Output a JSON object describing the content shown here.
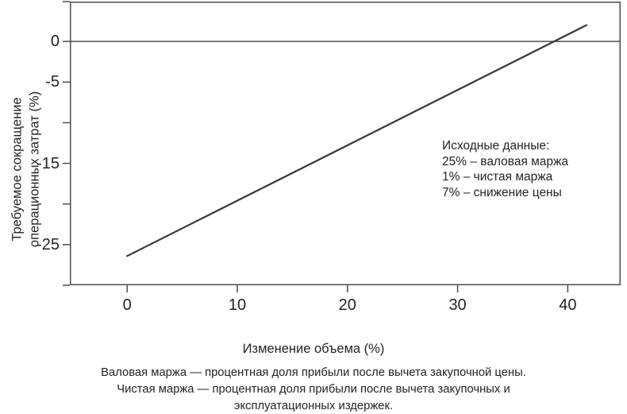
{
  "figure": {
    "background_color": "#ffffff",
    "text_color": "#242424",
    "axis_color": "#4d4d4d",
    "line_color": "#383838"
  },
  "chart_data": {
    "type": "line",
    "title": "",
    "xlabel": "Изменение объема (%)",
    "ylabel_line1": "Требуемое сокращение",
    "ylabel_line2": "операционных затрат (%)",
    "xlim": [
      -5.2,
      44.8
    ],
    "ylim": [
      -30,
      4.9
    ],
    "grid": false,
    "zero_line": 0,
    "series": [
      {
        "name": "Требуемое сокращение операционных затрат",
        "points": [
          [
            0,
            -26.4
          ],
          [
            41.7,
            2.0
          ]
        ]
      }
    ],
    "breakeven_x": 38.5,
    "x_ticks": [
      {
        "v": 0,
        "label": "0"
      },
      {
        "v": 10,
        "label": "10"
      },
      {
        "v": 20,
        "label": "20"
      },
      {
        "v": 30,
        "label": "30"
      },
      {
        "v": 40,
        "label": "40"
      }
    ],
    "y_ticks": [
      {
        "v": 4.9,
        "label": ""
      },
      {
        "v": 0,
        "label": "0"
      },
      {
        "v": -5,
        "label": "-5"
      },
      {
        "v": -10,
        "label": ""
      },
      {
        "v": -15,
        "label": "-15"
      },
      {
        "v": -20,
        "label": ""
      },
      {
        "v": -25,
        "label": "-25"
      },
      {
        "v": -30,
        "label": ""
      }
    ],
    "annotation": {
      "title": "Исходные данные:",
      "lines": [
        "25% – валовая маржа",
        "1% – чистая маржа",
        "7% – снижение цены"
      ]
    }
  },
  "caption": {
    "line1": "Валовая маржа — процентная доля прибыли после вычета закупочной цены.",
    "line2": "Чистая маржа — процентная доля прибыли после вычета закупочных и",
    "line3": "эксплуатационных издержек."
  }
}
